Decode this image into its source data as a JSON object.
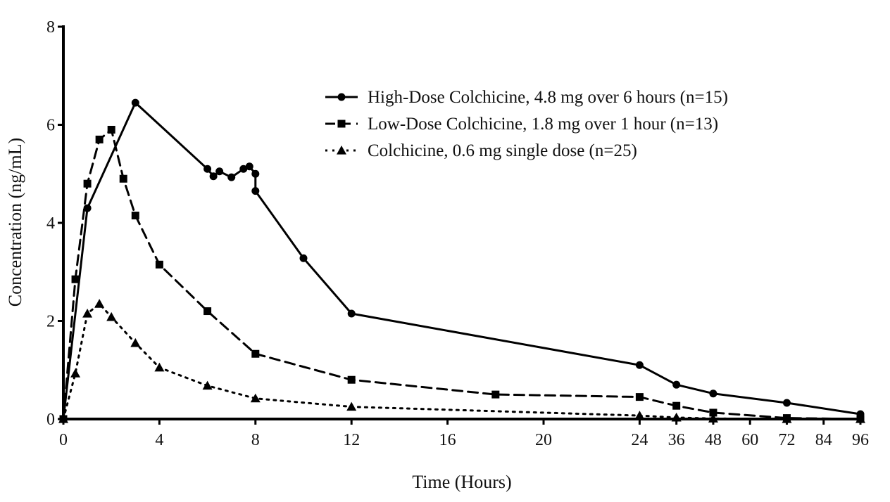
{
  "chart_data": {
    "type": "line",
    "xlabel": "Time (Hours)",
    "ylabel": "Concentration (ng/mL)",
    "ylim": [
      0,
      8
    ],
    "y_ticks": [
      "0",
      "2",
      "4",
      "6",
      "8"
    ],
    "x_ticks": [
      "0",
      "4",
      "8",
      "12",
      "16",
      "20",
      "24",
      "36",
      "48",
      "60",
      "72",
      "84",
      "96"
    ],
    "x_scale_note": "piecewise: linear 0-24 h, then compressed 24-96 h",
    "legend_position": "top-right",
    "series": [
      {
        "name": "High-Dose Colchicine, 4.8 mg over 6 hours (n=15)",
        "marker": "circle",
        "line_style": "solid",
        "x": [
          0,
          1,
          3,
          6,
          6.25,
          6.5,
          7,
          7.5,
          7.75,
          8,
          8,
          10,
          12,
          24,
          36,
          48,
          72,
          96
        ],
        "y": [
          0,
          4.3,
          6.45,
          5.1,
          4.95,
          5.05,
          4.93,
          5.1,
          5.15,
          5.0,
          4.65,
          3.28,
          2.15,
          1.1,
          0.7,
          0.52,
          0.33,
          0.1
        ]
      },
      {
        "name": "Low-Dose Colchicine, 1.8 mg over 1 hour (n=13)",
        "marker": "square",
        "line_style": "dashed",
        "x": [
          0,
          0.5,
          1,
          1.5,
          2,
          2.5,
          3,
          4,
          6,
          8,
          12,
          18,
          24,
          36,
          48,
          72,
          96
        ],
        "y": [
          0,
          2.85,
          4.8,
          5.7,
          5.9,
          4.9,
          4.15,
          3.15,
          2.2,
          1.33,
          0.8,
          0.5,
          0.45,
          0.27,
          0.13,
          0.02,
          0
        ]
      },
      {
        "name": "Colchicine, 0.6 mg single dose (n=25)",
        "marker": "triangle",
        "line_style": "dotted",
        "x": [
          0,
          0.5,
          1,
          1.5,
          2,
          3,
          4,
          6,
          8,
          12,
          24,
          36,
          48,
          72,
          96
        ],
        "y": [
          0,
          0.93,
          2.15,
          2.35,
          2.08,
          1.55,
          1.05,
          0.68,
          0.42,
          0.25,
          0.07,
          0.03,
          0.01,
          0,
          0
        ]
      }
    ]
  }
}
